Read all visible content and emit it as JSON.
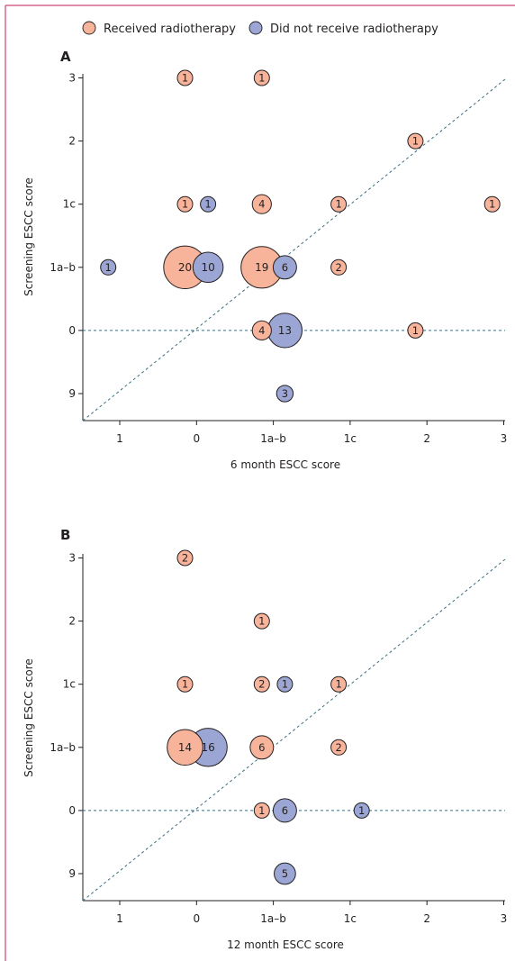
{
  "legend": {
    "items": [
      {
        "label": "Received radiotherapy",
        "color": "#f7b49a"
      },
      {
        "label": "Did not receive radiotherapy",
        "color": "#9ca6d4"
      }
    ],
    "placement": "top"
  },
  "colors": {
    "frame_accent": "#c2185b",
    "bubble_stroke": "#231f20",
    "reference_line": "#3b6d7f"
  },
  "chart_data": [
    {
      "type": "scatter",
      "panel_label": "A",
      "xlabel": "6 month ESCC score",
      "ylabel": "Screening ESCC score",
      "x_categories": [
        "1",
        "0",
        "1a–b",
        "1c",
        "2",
        "3"
      ],
      "y_categories": [
        "9",
        "0",
        "1a–b",
        "1c",
        "2",
        "3"
      ],
      "grid": false,
      "reference_lines": [
        "diagonal",
        "horizontal at 0"
      ],
      "points": [
        {
          "x": -0.15,
          "y": 5,
          "value": 1,
          "series": "Received radiotherapy"
        },
        {
          "x": 0.85,
          "y": 5,
          "value": 1,
          "series": "Received radiotherapy"
        },
        {
          "x": 2.85,
          "y": 4,
          "value": 1,
          "series": "Received radiotherapy"
        },
        {
          "x": -0.15,
          "y": 3,
          "value": 1,
          "series": "Received radiotherapy"
        },
        {
          "x": 0.15,
          "y": 3,
          "value": 1,
          "series": "Did not receive radiotherapy"
        },
        {
          "x": 0.85,
          "y": 3,
          "value": 4,
          "series": "Received radiotherapy"
        },
        {
          "x": 1.85,
          "y": 3,
          "value": 1,
          "series": "Received radiotherapy"
        },
        {
          "x": 3.85,
          "y": 3,
          "value": 1,
          "series": "Received radiotherapy"
        },
        {
          "x": -1.15,
          "y": 2,
          "value": 1,
          "series": "Did not receive radiotherapy"
        },
        {
          "x": -0.15,
          "y": 2,
          "value": 20,
          "series": "Received radiotherapy"
        },
        {
          "x": 0.15,
          "y": 2,
          "value": 10,
          "series": "Did not receive radiotherapy"
        },
        {
          "x": 0.85,
          "y": 2,
          "value": 19,
          "series": "Received radiotherapy"
        },
        {
          "x": 1.15,
          "y": 2,
          "value": 6,
          "series": "Did not receive radiotherapy"
        },
        {
          "x": 1.85,
          "y": 2,
          "value": 2,
          "series": "Received radiotherapy"
        },
        {
          "x": 0.85,
          "y": 1,
          "value": 4,
          "series": "Received radiotherapy"
        },
        {
          "x": 1.15,
          "y": 1,
          "value": 13,
          "series": "Did not receive radiotherapy"
        },
        {
          "x": 2.85,
          "y": 1,
          "value": 1,
          "series": "Received radiotherapy"
        },
        {
          "x": 1.15,
          "y": 0,
          "value": 3,
          "series": "Did not receive radiotherapy"
        }
      ]
    },
    {
      "type": "scatter",
      "panel_label": "B",
      "xlabel": "12 month ESCC score",
      "ylabel": "Screening ESCC score",
      "x_categories": [
        "1",
        "0",
        "1a–b",
        "1c",
        "2",
        "3"
      ],
      "y_categories": [
        "9",
        "0",
        "1a–b",
        "1c",
        "2",
        "3"
      ],
      "grid": false,
      "reference_lines": [
        "diagonal",
        "horizontal at 0"
      ],
      "points": [
        {
          "x": -0.15,
          "y": 5,
          "value": 2,
          "series": "Received radiotherapy"
        },
        {
          "x": 0.85,
          "y": 4,
          "value": 1,
          "series": "Received radiotherapy"
        },
        {
          "x": -0.15,
          "y": 3,
          "value": 1,
          "series": "Received radiotherapy"
        },
        {
          "x": 0.85,
          "y": 3,
          "value": 2,
          "series": "Received radiotherapy"
        },
        {
          "x": 1.15,
          "y": 3,
          "value": 1,
          "series": "Did not receive radiotherapy"
        },
        {
          "x": 1.85,
          "y": 3,
          "value": 1,
          "series": "Received radiotherapy"
        },
        {
          "x": -0.15,
          "y": 2,
          "value": 14,
          "series": "Received radiotherapy"
        },
        {
          "x": 0.15,
          "y": 2,
          "value": 16,
          "series": "Did not receive radiotherapy"
        },
        {
          "x": 0.85,
          "y": 2,
          "value": 6,
          "series": "Received radiotherapy"
        },
        {
          "x": 1.85,
          "y": 2,
          "value": 2,
          "series": "Received radiotherapy"
        },
        {
          "x": 0.85,
          "y": 1,
          "value": 1,
          "series": "Received radiotherapy"
        },
        {
          "x": 1.15,
          "y": 1,
          "value": 6,
          "series": "Did not receive radiotherapy"
        },
        {
          "x": 2.15,
          "y": 1,
          "value": 1,
          "series": "Did not receive radiotherapy"
        },
        {
          "x": 1.15,
          "y": 0,
          "value": 5,
          "series": "Did not receive radiotherapy"
        }
      ]
    }
  ]
}
